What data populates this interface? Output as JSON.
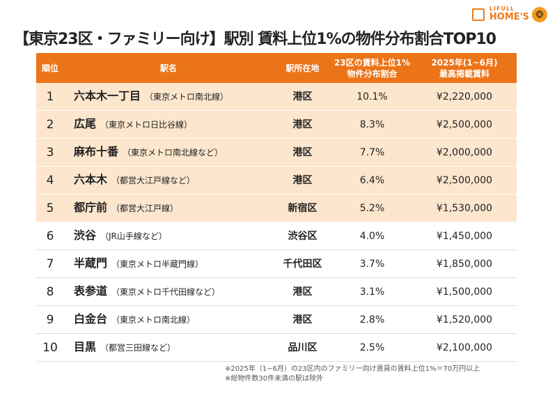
{
  "logo": {
    "line1": "LIFULL",
    "line2": "HOME'S"
  },
  "title": "【東京23区・ファミリー向け】駅別 賃料上位1%の物件分布割合TOP10",
  "headers": {
    "rank": "順位",
    "station": "駅名",
    "ward": "駅所在地",
    "share_l1": "23区の賃料上位1%",
    "share_l2": "物件分布割合",
    "rent_l1": "2025年(1~6月)",
    "rent_l2": "最高掲載賃料"
  },
  "rows": [
    {
      "rank": "1",
      "name": "六本木一丁目",
      "line": "（東京メトロ南北線）",
      "ward": "港区",
      "share": "10.1%",
      "rent": "¥2,220,000"
    },
    {
      "rank": "2",
      "name": "広尾",
      "line": "（東京メトロ日比谷線）",
      "ward": "港区",
      "share": "8.3%",
      "rent": "¥2,500,000"
    },
    {
      "rank": "3",
      "name": "麻布十番",
      "line": "（東京メトロ南北線など）",
      "ward": "港区",
      "share": "7.7%",
      "rent": "¥2,000,000"
    },
    {
      "rank": "4",
      "name": "六本木",
      "line": "（都営大江戸線など）",
      "ward": "港区",
      "share": "6.4%",
      "rent": "¥2,500,000"
    },
    {
      "rank": "5",
      "name": "都庁前",
      "line": "（都営大江戸線）",
      "ward": "新宿区",
      "share": "5.2%",
      "rent": "¥1,530,000"
    },
    {
      "rank": "6",
      "name": "渋谷",
      "line": "（JR山手線など）",
      "ward": "渋谷区",
      "share": "4.0%",
      "rent": "¥1,450,000"
    },
    {
      "rank": "7",
      "name": "半蔵門",
      "line": "（東京メトロ半蔵門線）",
      "ward": "千代田区",
      "share": "3.7%",
      "rent": "¥1,850,000"
    },
    {
      "rank": "8",
      "name": "表参道",
      "line": "（東京メトロ千代田線など）",
      "ward": "港区",
      "share": "3.1%",
      "rent": "¥1,500,000"
    },
    {
      "rank": "9",
      "name": "白金台",
      "line": "（東京メトロ南北線）",
      "ward": "港区",
      "share": "2.8%",
      "rent": "¥1,520,000"
    },
    {
      "rank": "10",
      "name": "目黒",
      "line": "（都営三田線など）",
      "ward": "品川区",
      "share": "2.5%",
      "rent": "¥2,100,000"
    }
  ],
  "notes": [
    "※2025年（1~6月）の23区内のファミリー向け賃貸の賃料上位1%＝70万円以上",
    "※総物件数30件未満の駅は除外"
  ]
}
